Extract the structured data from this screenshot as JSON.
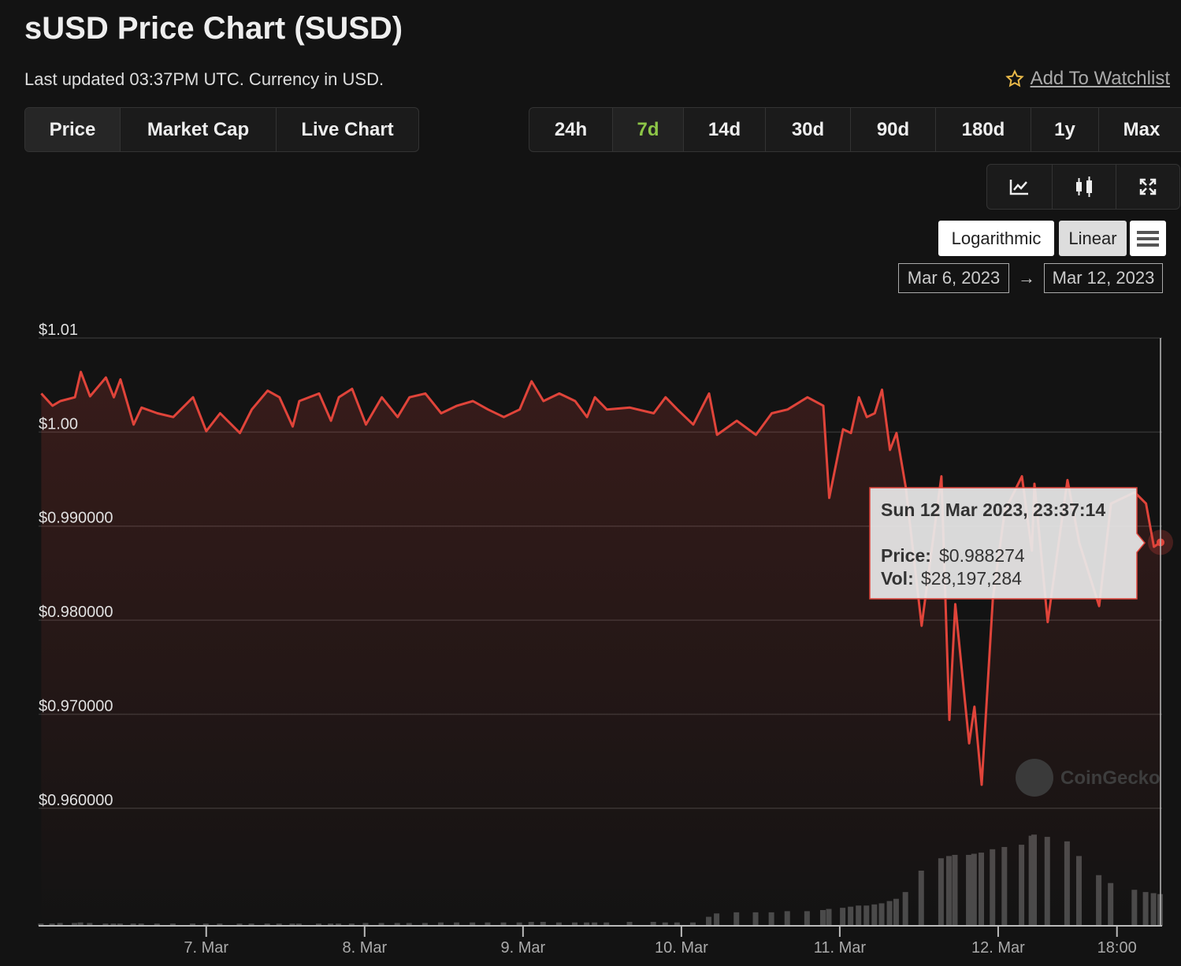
{
  "header": {
    "title": "sUSD Price Chart (SUSD)",
    "subtitle": "Last updated 03:37PM UTC. Currency in USD.",
    "watchlist": "Add To Watchlist"
  },
  "tabs": [
    "Price",
    "Market Cap",
    "Live Chart"
  ],
  "ranges": [
    "24h",
    "7d",
    "14d",
    "30d",
    "90d",
    "180d",
    "1y",
    "Max"
  ],
  "scale_buttons": [
    "Logarithmic",
    "Linear"
  ],
  "date_range": {
    "from": "Mar 6, 2023",
    "arrow": "→",
    "to": "Mar 12, 2023"
  },
  "chart_data": {
    "type": "line",
    "watermark": "CoinGecko",
    "x": [
      -25.0,
      -23.3,
      -22.1,
      -19.9,
      -19.0,
      -17.6,
      -15.2,
      -14.0,
      -13.0,
      -11.0,
      -9.8,
      -7.4,
      -5.0,
      -2.0,
      0.0,
      2.1,
      5.1,
      6.9,
      9.3,
      11.1,
      13.1,
      14.1,
      17.1,
      18.9,
      20.1,
      22.1,
      24.2,
      26.6,
      29.0,
      30.8,
      33.2,
      35.6,
      38.0,
      40.4,
      42.7,
      45.1,
      47.5,
      49.3,
      51.1,
      53.5,
      55.9,
      57.7,
      58.9,
      60.7,
      64.2,
      67.8,
      69.6,
      71.4,
      73.8,
      76.2,
      77.4,
      80.4,
      83.3,
      85.7,
      88.1,
      91.1,
      93.5,
      94.4,
      96.5,
      97.7,
      98.9,
      100.1,
      101.3,
      102.4,
      103.6,
      104.6,
      106.0,
      108.4,
      111.4,
      112.6,
      113.5,
      115.6,
      116.4,
      117.5,
      119.2,
      121.0,
      123.6,
      125.1,
      125.5,
      127.5,
      130.5,
      132.3,
      135.3,
      137.1,
      140.7,
      142.4,
      143.6,
      144.6
    ],
    "series": [
      {
        "color": "#e0443a",
        "values": [
          1.0041,
          1.0028,
          1.0033,
          1.0037,
          1.0064,
          1.0038,
          1.0058,
          1.0037,
          1.0056,
          1.0008,
          1.0026,
          1.002,
          1.0016,
          1.0037,
          1.0001,
          1.002,
          0.9999,
          1.0024,
          1.0044,
          1.0037,
          1.0006,
          1.0033,
          1.0041,
          1.0012,
          1.0037,
          1.0046,
          1.0008,
          1.0037,
          1.0016,
          1.0037,
          1.0041,
          1.002,
          1.0028,
          1.0033,
          1.0024,
          1.0016,
          1.0024,
          1.0054,
          1.0033,
          1.0041,
          1.0033,
          1.0016,
          1.0037,
          1.0024,
          1.0026,
          1.002,
          1.0037,
          1.0024,
          1.0008,
          1.0041,
          0.9997,
          1.0012,
          0.9997,
          1.002,
          1.0024,
          1.0037,
          1.0028,
          0.993,
          1.0003,
          0.9999,
          1.0037,
          1.0016,
          1.002,
          1.0045,
          0.9981,
          0.9999,
          0.9941,
          0.9794,
          0.9953,
          0.9694,
          0.9817,
          0.9669,
          0.9708,
          0.9625,
          0.9823,
          0.9916,
          0.9953,
          0.9874,
          0.9945,
          0.9798,
          0.9949,
          0.9882,
          0.9815,
          0.9924,
          0.9936,
          0.9924,
          0.9878,
          0.988274
        ]
      },
      {
        "color": "#4a4a4a",
        "axis": "y2",
        "type": "bar",
        "values": [
          2000000,
          2000000,
          2500000,
          2500000,
          3000000,
          2500000,
          2000000,
          2000000,
          2000000,
          2000000,
          2000000,
          2000000,
          2000000,
          2000000,
          2000000,
          2000000,
          2000000,
          2000000,
          2000000,
          2000000,
          2000000,
          2000000,
          2000000,
          2000000,
          2000000,
          2000000,
          2500000,
          2500000,
          2500000,
          2500000,
          2500000,
          3000000,
          3000000,
          3000000,
          3000000,
          3000000,
          3000000,
          3500000,
          3500000,
          3000000,
          3000000,
          3000000,
          3000000,
          3000000,
          3500000,
          3500000,
          3000000,
          3000000,
          3000000,
          8000000,
          11000000,
          12000000,
          12000000,
          12000000,
          13000000,
          13000000,
          14000000,
          15000000,
          16000000,
          17000000,
          18000000,
          18000000,
          19000000,
          20000000,
          22000000,
          24000000,
          30000000,
          49000000,
          60000000,
          62000000,
          63000000,
          63000000,
          64000000,
          65000000,
          68000000,
          70000000,
          72000000,
          80000000,
          81000000,
          79000000,
          75000000,
          62000000,
          45000000,
          38000000,
          32000000,
          30000000,
          29000000,
          28197284
        ]
      }
    ],
    "xlim": [
      -25.4,
      144.6
    ],
    "xticks": [
      {
        "value": 0,
        "label": "7. Mar"
      },
      {
        "value": 24,
        "label": "8. Mar"
      },
      {
        "value": 48,
        "label": "9. Mar"
      },
      {
        "value": 72,
        "label": "10. Mar"
      },
      {
        "value": 96,
        "label": "11. Mar"
      },
      {
        "value": 120,
        "label": "12. Mar"
      },
      {
        "value": 138,
        "label": "18:00"
      }
    ],
    "ylim": [
      0.9475,
      1.01
    ],
    "yticks": [
      {
        "value": 1.01,
        "label": "$1.01"
      },
      {
        "value": 1.0,
        "label": "$1.00"
      },
      {
        "value": 0.99,
        "label": "$0.990000"
      },
      {
        "value": 0.98,
        "label": "$0.980000"
      },
      {
        "value": 0.97,
        "label": "$0.970000"
      },
      {
        "value": 0.96,
        "label": "$0.960000"
      }
    ],
    "y2lim": [
      0,
      522000000
    ],
    "grid": true,
    "tooltip": {
      "title": "Sun 12 Mar 2023, 23:37:14",
      "price_label": "Price:",
      "price": "$0.988274",
      "vol_label": "Vol:",
      "vol": "$28,197,284"
    }
  }
}
